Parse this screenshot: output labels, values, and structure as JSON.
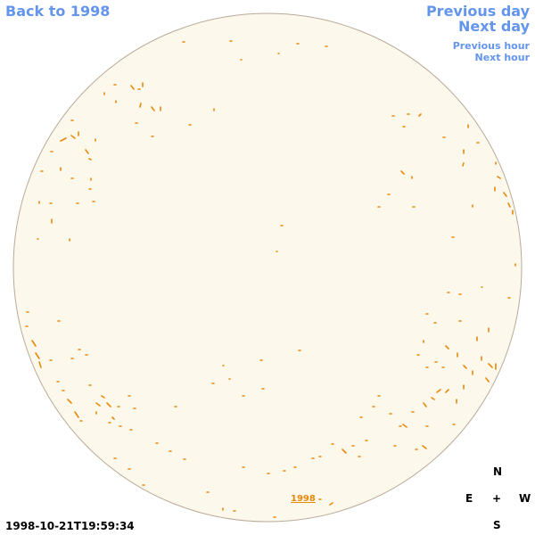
{
  "nav": {
    "back": "Back to 1998",
    "previous_day": "Previous day",
    "next_day": "Next day",
    "previous_hour": "Previous hour",
    "next_hour": "Next hour"
  },
  "image": {
    "year_link": "1998",
    "timestamp": "1998-10-21T19:59:34"
  },
  "compass": {
    "north": "N",
    "east": "E",
    "center": "+",
    "west": "W",
    "south": "S"
  }
}
